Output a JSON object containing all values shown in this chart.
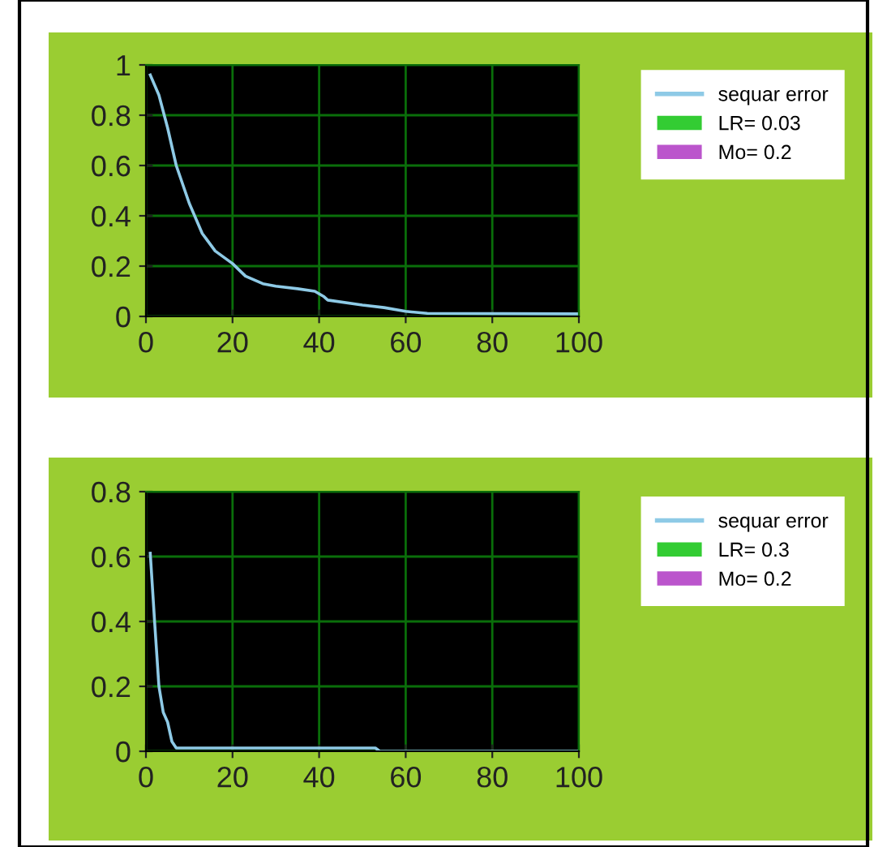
{
  "chart_data": [
    {
      "type": "line",
      "xlim": [
        0,
        100
      ],
      "xticks": [
        0,
        20,
        40,
        60,
        80,
        100
      ],
      "ylim": [
        0,
        1
      ],
      "yticks": [
        0,
        0.2,
        0.4,
        0.6,
        0.8,
        1
      ],
      "grid": true,
      "legend": "right",
      "series": [
        {
          "name": "sequar error",
          "color": "#8ecae6",
          "x": [
            1,
            3,
            5,
            7,
            10,
            13,
            16,
            20,
            23,
            27,
            30,
            35,
            39,
            41,
            42,
            50,
            55,
            60,
            65,
            100
          ],
          "values": [
            0.96,
            0.88,
            0.75,
            0.6,
            0.45,
            0.33,
            0.26,
            0.21,
            0.16,
            0.13,
            0.12,
            0.11,
            0.1,
            0.08,
            0.065,
            0.045,
            0.035,
            0.02,
            0.012,
            0.01
          ]
        },
        {
          "name": "LR= 0.03",
          "color": "#33cc33",
          "type": "bar"
        },
        {
          "name": "Mo= 0.2",
          "color": "#bb55cc",
          "type": "bar"
        }
      ]
    },
    {
      "type": "line",
      "xlim": [
        0,
        100
      ],
      "xticks": [
        0,
        20,
        40,
        60,
        80,
        100
      ],
      "ylim": [
        0,
        0.8
      ],
      "yticks": [
        0,
        0.2,
        0.4,
        0.6,
        0.8
      ],
      "grid": true,
      "legend": "right",
      "series": [
        {
          "name": "sequar error",
          "color": "#8ecae6",
          "x": [
            1,
            2,
            3,
            4,
            5,
            6,
            7,
            53,
            54,
            100
          ],
          "values": [
            0.61,
            0.4,
            0.2,
            0.12,
            0.09,
            0.03,
            0.01,
            0.01,
            0.0,
            0.0
          ]
        },
        {
          "name": "LR= 0.3",
          "color": "#33cc33",
          "type": "bar"
        },
        {
          "name": "Mo= 0.2",
          "color": "#bb55cc",
          "type": "bar"
        }
      ]
    }
  ]
}
